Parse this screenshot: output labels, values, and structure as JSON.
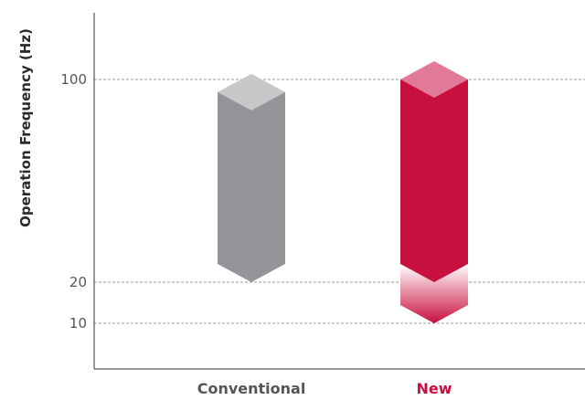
{
  "chart_data": {
    "type": "bar",
    "ylabel": "Operation Frequency (Hz)",
    "yticks": [
      {
        "value": 100,
        "label": "100"
      },
      {
        "value": 20,
        "label": "20"
      },
      {
        "value": 10,
        "label": "10"
      }
    ],
    "grid": "horizontal dashed at ticks",
    "categories": [
      "Conventional",
      "New"
    ],
    "category_colors": [
      "#555555",
      "#c8103e"
    ],
    "bars": [
      {
        "category": "Conventional",
        "min": 20,
        "max": 95,
        "color": "#939598",
        "top_color": "#c7c8ca"
      },
      {
        "category": "New",
        "min": 10,
        "max": 100,
        "core_min": 20,
        "color": "#c8103e",
        "top_color": "#e07a97",
        "extension": "gradient-fade"
      }
    ]
  }
}
